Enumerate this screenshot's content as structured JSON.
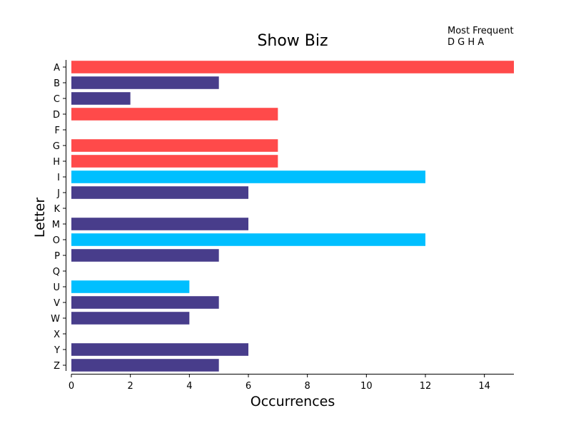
{
  "chart_data": {
    "type": "bar",
    "orientation": "horizontal",
    "title": "Show Biz",
    "xlabel": "Occurrences",
    "ylabel": "Letter",
    "xlim": [
      0,
      15
    ],
    "xticks": [
      0,
      2,
      4,
      6,
      8,
      10,
      12,
      14
    ],
    "grid": false,
    "categories": [
      "A",
      "B",
      "C",
      "D",
      "F",
      "G",
      "H",
      "I",
      "J",
      "K",
      "M",
      "O",
      "P",
      "Q",
      "U",
      "V",
      "W",
      "X",
      "Y",
      "Z"
    ],
    "values": [
      15,
      5,
      2,
      7,
      0,
      7,
      7,
      12,
      6,
      0,
      6,
      12,
      5,
      0,
      4,
      5,
      4,
      0,
      6,
      5
    ],
    "bar_colors": [
      "#ff4a4a",
      "#483d8b",
      "#483d8b",
      "#ff4a4a",
      "#483d8b",
      "#ff4a4a",
      "#ff4a4a",
      "#00bfff",
      "#483d8b",
      "#483d8b",
      "#483d8b",
      "#00bfff",
      "#483d8b",
      "#483d8b",
      "#00bfff",
      "#483d8b",
      "#483d8b",
      "#483d8b",
      "#483d8b",
      "#483d8b"
    ],
    "annotation": {
      "heading": "Most Frequent",
      "letters": "D G H A"
    }
  }
}
